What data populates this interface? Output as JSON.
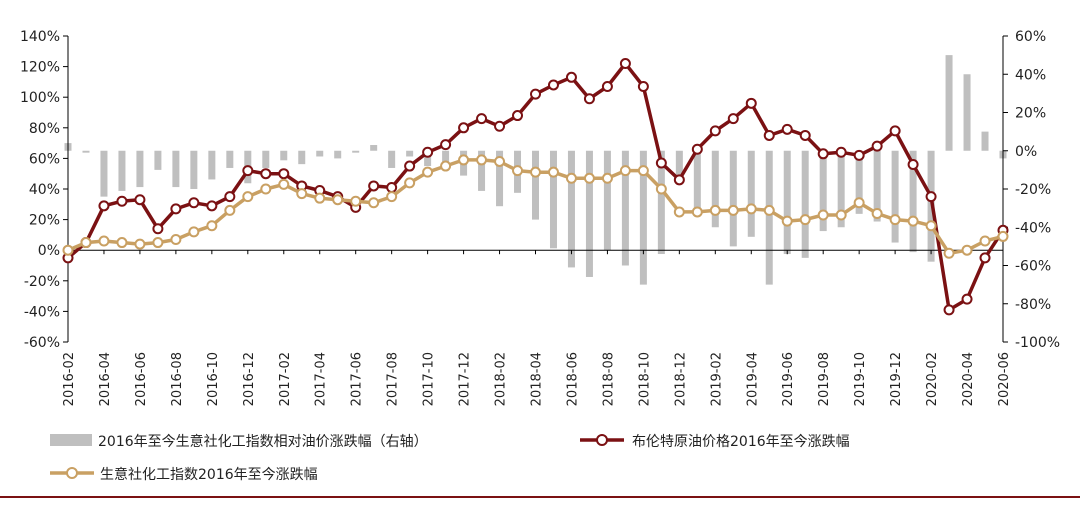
{
  "chart_data": {
    "type": "bar+line",
    "categories": [
      "2016-02",
      "2016-03",
      "2016-04",
      "2016-05",
      "2016-06",
      "2016-07",
      "2016-08",
      "2016-09",
      "2016-10",
      "2016-11",
      "2016-12",
      "2017-01",
      "2017-02",
      "2017-03",
      "2017-04",
      "2017-05",
      "2017-06",
      "2017-07",
      "2017-08",
      "2017-09",
      "2017-10",
      "2017-11",
      "2017-12",
      "2018-01",
      "2018-02",
      "2018-03",
      "2018-04",
      "2018-05",
      "2018-06",
      "2018-07",
      "2018-08",
      "2018-09",
      "2018-10",
      "2018-11",
      "2018-12",
      "2019-01",
      "2019-02",
      "2019-03",
      "2019-04",
      "2019-05",
      "2019-06",
      "2019-07",
      "2019-08",
      "2019-09",
      "2019-10",
      "2019-11",
      "2019-12",
      "2020-01",
      "2020-02",
      "2020-03",
      "2020-04",
      "2020-05",
      "2020-06"
    ],
    "x_tick_labels": [
      "2016-02",
      "2016-04",
      "2016-06",
      "2016-08",
      "2016-10",
      "2016-12",
      "2017-02",
      "2017-04",
      "2017-06",
      "2017-08",
      "2017-10",
      "2017-12",
      "2018-02",
      "2018-04",
      "2018-06",
      "2018-08",
      "2018-10",
      "2018-12",
      "2019-02",
      "2019-04",
      "2019-06",
      "2019-08",
      "2019-10",
      "2019-12",
      "2020-02",
      "2020-04",
      "2020-06"
    ],
    "y_left": {
      "min": -60,
      "max": 140,
      "step": 20,
      "unit": "%"
    },
    "y_right": {
      "min": -100,
      "max": 60,
      "step": 20,
      "unit": "%"
    },
    "series": [
      {
        "name": "2016年至今生意社化工指数相对油价涨跌幅（右轴）",
        "type": "bar",
        "axis": "right",
        "color": "#bfbfbf",
        "values": [
          4,
          -1,
          -24,
          -21,
          -19,
          -10,
          -19,
          -20,
          -15,
          -9,
          -17,
          -9,
          -5,
          -7,
          -3,
          -4,
          -1,
          3,
          -9,
          -3,
          -8,
          -9,
          -13,
          -21,
          -29,
          -22,
          -36,
          -51,
          -61,
          -66,
          -52,
          -60,
          -70,
          -54,
          -14,
          -30,
          -40,
          -50,
          -45,
          -70,
          -54,
          -56,
          -42,
          -40,
          -33,
          -37,
          -48,
          -53,
          -58,
          50,
          40,
          10,
          -4
        ]
      },
      {
        "name": "布伦特原油价格2016年至今涨跌幅",
        "type": "line",
        "axis": "left",
        "color": "#7b1113",
        "values": [
          -5,
          5,
          29,
          32,
          33,
          14,
          27,
          31,
          29,
          35,
          52,
          50,
          50,
          42,
          39,
          35,
          28,
          42,
          41,
          55,
          64,
          69,
          80,
          86,
          81,
          88,
          102,
          108,
          113,
          99,
          107,
          122,
          107,
          57,
          46,
          66,
          78,
          86,
          96,
          75,
          79,
          75,
          63,
          64,
          62,
          68,
          78,
          56,
          35,
          -39,
          -32,
          -5,
          13
        ]
      },
      {
        "name": "生意社化工指数2016年至今涨跌幅",
        "type": "line",
        "axis": "left",
        "color": "#c9a063",
        "values": [
          0,
          5,
          6,
          5,
          4,
          5,
          7,
          12,
          16,
          26,
          35,
          40,
          43,
          37,
          34,
          33,
          32,
          31,
          35,
          44,
          51,
          55,
          59,
          59,
          58,
          52,
          51,
          51,
          47,
          47,
          47,
          52,
          52,
          40,
          25,
          25,
          26,
          26,
          27,
          26,
          19,
          20,
          23,
          23,
          31,
          24,
          20,
          19,
          16,
          -2,
          0,
          6,
          9
        ]
      }
    ]
  }
}
